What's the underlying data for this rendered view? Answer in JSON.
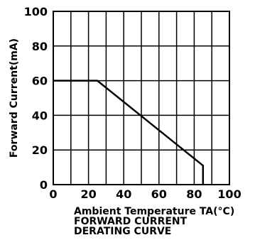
{
  "chart_data": {
    "type": "line",
    "xlabel": "Ambient Temperature TA(°C)",
    "ylabel": "Forward Current(mA)",
    "caption": [
      "FORWARD CURRENT",
      "DERATING CURVE"
    ],
    "xlim": [
      0,
      100
    ],
    "ylim": [
      0,
      100
    ],
    "x_ticks": [
      0,
      20,
      40,
      60,
      80,
      100
    ],
    "y_ticks": [
      0,
      20,
      40,
      60,
      80,
      100
    ],
    "x_tick_labels": [
      "0",
      "20",
      "40",
      "60",
      "80",
      "100"
    ],
    "y_tick_labels": [
      "0",
      "20",
      "40",
      "60",
      "80",
      "100"
    ],
    "grid": true,
    "series": [
      {
        "x": [
          0,
          25,
          85,
          85
        ],
        "y": [
          60,
          60,
          11,
          0
        ]
      }
    ]
  }
}
